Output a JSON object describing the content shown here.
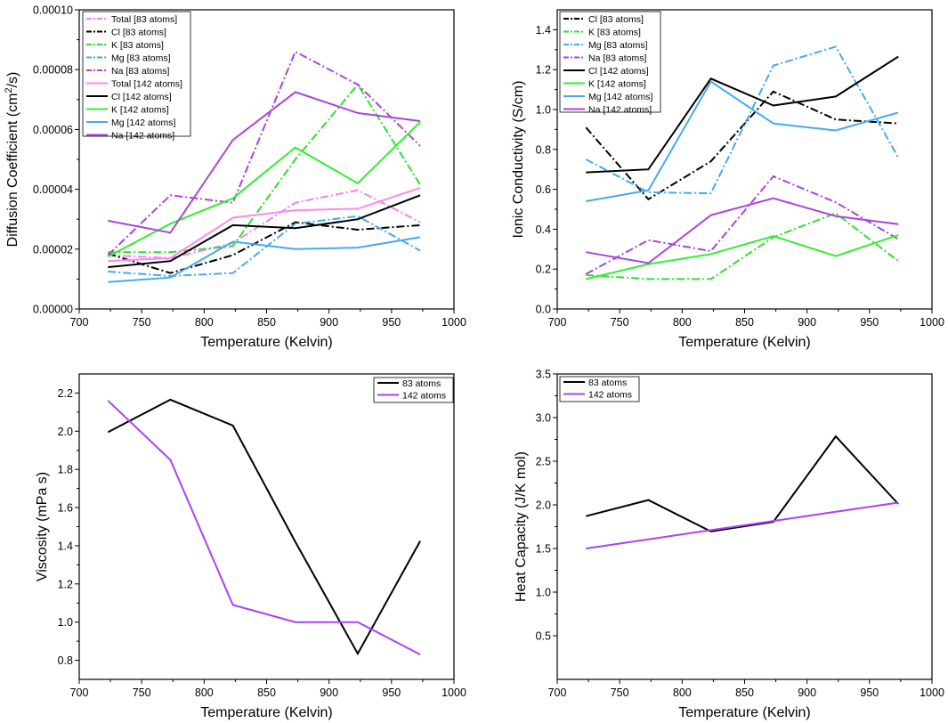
{
  "chart_data": [
    {
      "id": "diffusion",
      "type": "line",
      "xlabel": "Temperature (Kelvin)",
      "ylabel_parts": [
        "Diffusion Coefficient (cm",
        "2",
        "/s)"
      ],
      "xlim": [
        700,
        1000
      ],
      "ylim": [
        0,
        0.0001
      ],
      "xticks": [
        700,
        750,
        800,
        850,
        900,
        950,
        1000
      ],
      "yticks": [
        0.0,
        2e-05,
        4e-05,
        6e-05,
        8e-05,
        0.0001
      ],
      "ytick_labels": [
        "0.00000",
        "0.00002",
        "0.00004",
        "0.00006",
        "0.00008",
        "0.00010"
      ],
      "x": [
        723,
        773,
        823,
        873,
        923,
        973
      ],
      "series": [
        {
          "name": "Total [83 atoms]",
          "color": "#ee82ee",
          "dash": "dashdot",
          "values": [
            1.8e-05,
            1.7e-05,
            2.2e-05,
            3.55e-05,
            3.97e-05,
            2.9e-05
          ]
        },
        {
          "name": "Cl [83 atoms]",
          "color": "#000000",
          "dash": "dashdot",
          "values": [
            1.85e-05,
            1.2e-05,
            1.8e-05,
            2.9e-05,
            2.65e-05,
            2.8e-05
          ]
        },
        {
          "name": "K [83 atoms]",
          "color": "#33dd33",
          "dash": "dashdot",
          "values": [
            1.9e-05,
            1.9e-05,
            2.1e-05,
            5e-05,
            7.5e-05,
            4.15e-05
          ]
        },
        {
          "name": "Mg [83 atoms]",
          "color": "#44aaee",
          "dash": "dashdot",
          "values": [
            1.25e-05,
            1.1e-05,
            1.2e-05,
            2.85e-05,
            3.1e-05,
            1.95e-05
          ]
        },
        {
          "name": "Na [83 atoms]",
          "color": "#aa44dd",
          "dash": "dashdot",
          "values": [
            1.8e-05,
            3.8e-05,
            3.55e-05,
            8.6e-05,
            7.5e-05,
            5.45e-05
          ]
        },
        {
          "name": "Total [142 atoms]",
          "color": "#ff88ee",
          "dash": "solid",
          "values": [
            1.6e-05,
            1.7e-05,
            3.05e-05,
            3.3e-05,
            3.35e-05,
            4.05e-05
          ]
        },
        {
          "name": "Cl [142 atoms]",
          "color": "#000000",
          "dash": "solid",
          "values": [
            1.4e-05,
            1.6e-05,
            2.8e-05,
            2.7e-05,
            3e-05,
            3.8e-05
          ]
        },
        {
          "name": "K [142 atoms]",
          "color": "#33ee33",
          "dash": "solid",
          "values": [
            1.75e-05,
            2.85e-05,
            3.7e-05,
            5.4e-05,
            4.2e-05,
            6.25e-05
          ]
        },
        {
          "name": "Mg [142 atoms]",
          "color": "#44aaee",
          "dash": "solid",
          "values": [
            9e-06,
            1.05e-05,
            2.25e-05,
            2e-05,
            2.05e-05,
            2.4e-05
          ]
        },
        {
          "name": "Na [142 atoms]",
          "color": "#aa44dd",
          "dash": "solid",
          "values": [
            2.95e-05,
            2.55e-05,
            5.65e-05,
            7.25e-05,
            6.55e-05,
            6.28e-05
          ]
        }
      ]
    },
    {
      "id": "ionic",
      "type": "line",
      "xlabel": "Temperature (Kelvin)",
      "ylabel_parts": [
        "Ionic Conductivity (S/cm)"
      ],
      "xlim": [
        700,
        1000
      ],
      "ylim": [
        0,
        1.5
      ],
      "xticks": [
        700,
        750,
        800,
        850,
        900,
        950,
        1000
      ],
      "yticks": [
        0.0,
        0.2,
        0.4,
        0.6,
        0.8,
        1.0,
        1.2,
        1.4
      ],
      "ytick_labels": [
        "0.0",
        "0.2",
        "0.4",
        "0.6",
        "0.8",
        "1.0",
        "1.2",
        "1.4"
      ],
      "x": [
        723,
        773,
        823,
        873,
        923,
        973
      ],
      "series": [
        {
          "name": "Cl [83 atoms]",
          "color": "#000000",
          "dash": "dashdot",
          "values": [
            0.91,
            0.55,
            0.74,
            1.09,
            0.95,
            0.93
          ]
        },
        {
          "name": "K [83 atoms]",
          "color": "#33dd33",
          "dash": "dashdot",
          "values": [
            0.17,
            0.15,
            0.15,
            0.36,
            0.48,
            0.24
          ]
        },
        {
          "name": "Mg [83 atoms]",
          "color": "#44aaee",
          "dash": "dashdot",
          "values": [
            0.75,
            0.585,
            0.58,
            1.22,
            1.315,
            0.76
          ]
        },
        {
          "name": "Na [83 atoms]",
          "color": "#aa44dd",
          "dash": "dashdot",
          "values": [
            0.175,
            0.345,
            0.29,
            0.665,
            0.535,
            0.35
          ]
        },
        {
          "name": "Cl [142 atoms]",
          "color": "#000000",
          "dash": "solid",
          "values": [
            0.685,
            0.7,
            1.155,
            1.02,
            1.065,
            1.265
          ]
        },
        {
          "name": "K [142 atoms]",
          "color": "#33ee33",
          "dash": "solid",
          "values": [
            0.15,
            0.225,
            0.275,
            0.365,
            0.265,
            0.37
          ]
        },
        {
          "name": "Mg [142 atoms]",
          "color": "#44aaee",
          "dash": "solid",
          "values": [
            0.54,
            0.595,
            1.14,
            0.93,
            0.895,
            0.985
          ]
        },
        {
          "name": "Na [142 atoms]",
          "color": "#aa44dd",
          "dash": "solid",
          "values": [
            0.285,
            0.23,
            0.47,
            0.555,
            0.465,
            0.425
          ]
        }
      ]
    },
    {
      "id": "viscosity",
      "type": "line",
      "xlabel": "Temperature (Kelvin)",
      "ylabel_parts": [
        "Viscosity (mPa s)"
      ],
      "xlim": [
        700,
        1000
      ],
      "ylim": [
        0.7,
        2.3
      ],
      "xticks": [
        700,
        750,
        800,
        850,
        900,
        950,
        1000
      ],
      "yticks": [
        0.8,
        1.0,
        1.2,
        1.4,
        1.6,
        1.8,
        2.0,
        2.2
      ],
      "ytick_labels": [
        "0.8",
        "1.0",
        "1.2",
        "1.4",
        "1.6",
        "1.8",
        "2.0",
        "2.2"
      ],
      "x": [
        723,
        773,
        823,
        873,
        923,
        973
      ],
      "series": [
        {
          "name": "83 atoms",
          "color": "#000000",
          "dash": "solid",
          "values": [
            1.995,
            2.165,
            2.03,
            1.42,
            0.835,
            1.425
          ]
        },
        {
          "name": "142 atoms",
          "color": "#aa44ee",
          "dash": "solid",
          "values": [
            2.16,
            1.85,
            1.09,
            1.0,
            1.0,
            0.83
          ]
        }
      ]
    },
    {
      "id": "heat",
      "type": "line",
      "xlabel": "Temperature (Kelvin)",
      "ylabel_parts": [
        "Heat Capacity (J/K mol)"
      ],
      "xlim": [
        700,
        1000
      ],
      "ylim": [
        0,
        3.5
      ],
      "xticks": [
        700,
        750,
        800,
        850,
        900,
        950,
        1000
      ],
      "yticks": [
        0.5,
        1.0,
        1.5,
        2.0,
        2.5,
        3.0,
        3.5
      ],
      "ytick_labels": [
        "0.5",
        "1.0",
        "1.5",
        "2.0",
        "2.5",
        "3.0",
        "3.5"
      ],
      "x": [
        723,
        773,
        823,
        873,
        923,
        973
      ],
      "series": [
        {
          "name": "83 atoms",
          "color": "#000000",
          "dash": "solid",
          "values": [
            1.87,
            2.055,
            1.695,
            1.805,
            2.785,
            2.01
          ]
        },
        {
          "name": "142 atoms",
          "color": "#aa44ee",
          "dash": "solid",
          "values": [
            1.5,
            1.605,
            1.71,
            1.815,
            1.92,
            2.025
          ]
        }
      ]
    }
  ]
}
